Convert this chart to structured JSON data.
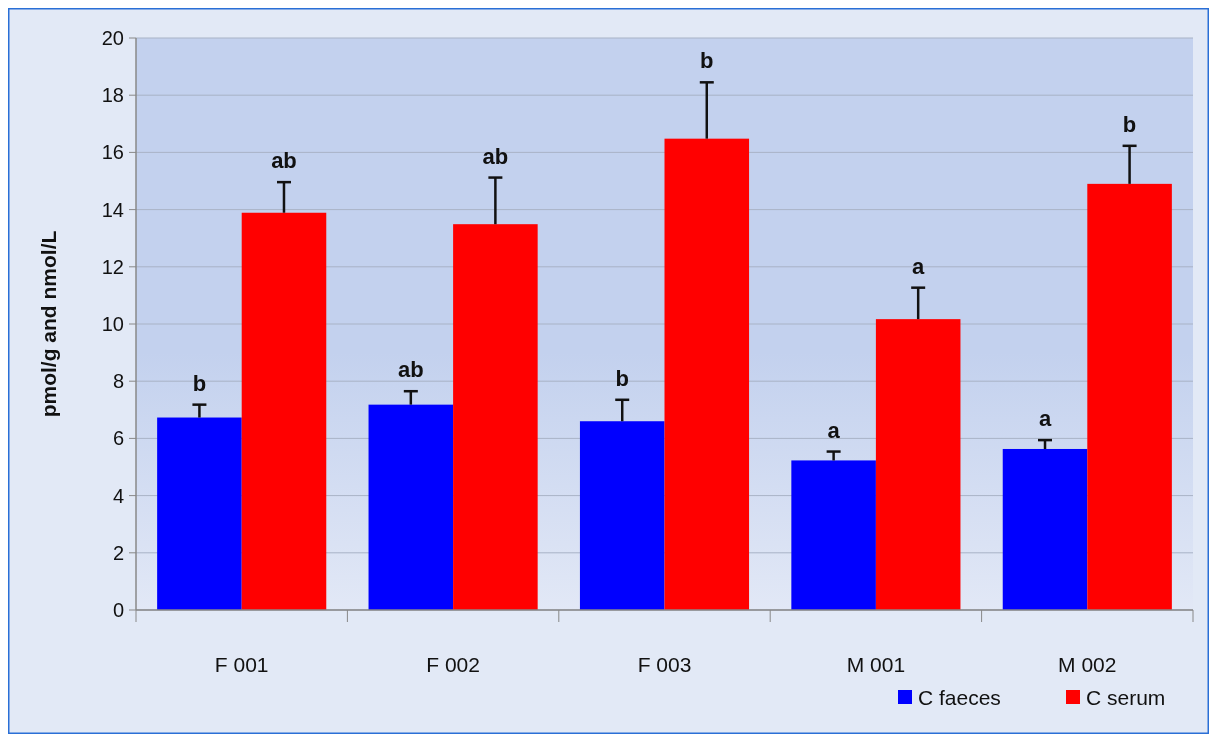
{
  "chart_data": {
    "type": "bar",
    "ylabel": "pmol/g and nmol/L",
    "categories": [
      "F 001",
      "F 002",
      "F 003",
      "M 001",
      "M 002"
    ],
    "series": [
      {
        "name": "C faeces",
        "color": "#0000ff",
        "values": [
          6.73,
          7.18,
          6.6,
          5.23,
          5.63
        ],
        "errors": [
          [
            6.73,
            7.18
          ],
          [
            7.18,
            7.65
          ],
          [
            6.6,
            7.35
          ],
          [
            5.23,
            5.54
          ],
          [
            5.63,
            5.94
          ]
        ],
        "value_labels": [
          "b",
          "ab",
          "b",
          "a",
          "a"
        ]
      },
      {
        "name": "C serum",
        "color": "#ff0000",
        "values": [
          13.89,
          13.49,
          16.48,
          10.17,
          14.9
        ],
        "errors": [
          [
            13.89,
            14.96
          ],
          [
            13.49,
            15.12
          ],
          [
            16.48,
            18.45
          ],
          [
            10.17,
            11.27
          ],
          [
            14.9,
            16.23
          ]
        ],
        "value_labels": [
          "ab",
          "ab",
          "b",
          "a",
          "b"
        ]
      }
    ],
    "ylim": [
      0,
      20
    ],
    "yticks": [
      0,
      2,
      4,
      6,
      8,
      10,
      12,
      14,
      16,
      18,
      20
    ],
    "grid": "y",
    "legend": "bottom right"
  }
}
